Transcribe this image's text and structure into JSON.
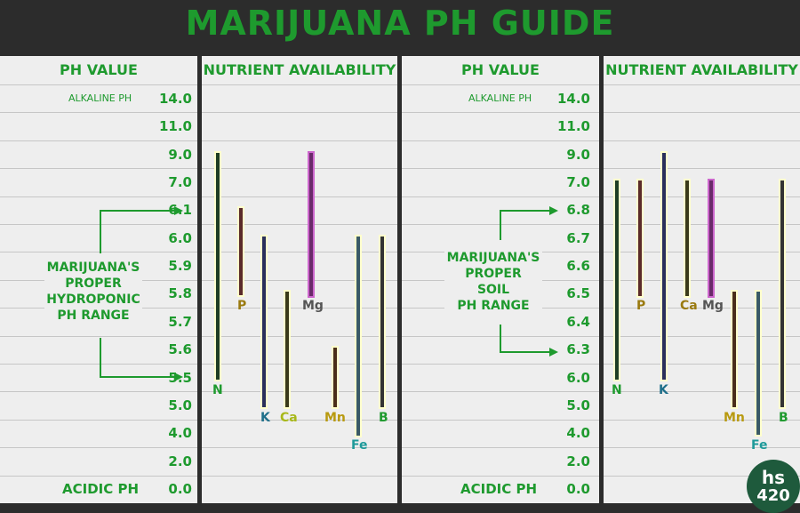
{
  "title": "MARIJUANA PH GUIDE",
  "colors": {
    "accent": "#1e9a2e",
    "background": "#2c2c2c",
    "panel": "#eeeeee",
    "logo": "#1e5a3c"
  },
  "left": {
    "ph_header": "PH VALUE",
    "nutrient_header": "NUTRIENT AVAILABILITY",
    "alkaline_label": "ALKALINE PH",
    "acidic_label": "ACIDIC PH",
    "ph_values": [
      "14.0",
      "11.0",
      "9.0",
      "7.0",
      "6.1",
      "6.0",
      "5.9",
      "5.8",
      "5.7",
      "5.6",
      "5.5",
      "5.0",
      "4.0",
      "2.0",
      "0.0"
    ],
    "range_label": [
      "MARIJUANA'S",
      "PROPER",
      "HYDROPONIC",
      "PH RANGE"
    ],
    "nutrients": [
      {
        "symbol": "N",
        "color": "#1e9a2e",
        "fill": "#1e3d24",
        "from": "5.5",
        "to": "9.0"
      },
      {
        "symbol": "P",
        "color": "#9a7a10",
        "fill": "#5a2a2a",
        "from": "5.8",
        "to": "6.1"
      },
      {
        "symbol": "K",
        "color": "#1f6f8a",
        "fill": "#2a2f5a",
        "from": "5.0",
        "to": "6.0"
      },
      {
        "symbol": "Ca",
        "color": "#a8b81a",
        "fill": "#3a3a1a",
        "from": "5.0",
        "to": "5.8"
      },
      {
        "symbol": "Mg",
        "color": "#555555",
        "fill": "#6a2a6a",
        "from": "5.8",
        "to": "9.0"
      },
      {
        "symbol": "Mn",
        "color": "#b89a10",
        "fill": "#4a2e1a",
        "from": "5.0",
        "to": "5.6"
      },
      {
        "symbol": "Fe",
        "color": "#1e9a9a",
        "fill": "#3a5a66",
        "from": "4.0",
        "to": "6.0"
      },
      {
        "symbol": "B",
        "color": "#1e9a2e",
        "fill": "#333333",
        "from": "5.0",
        "to": "6.0"
      }
    ]
  },
  "right": {
    "ph_header": "PH VALUE",
    "nutrient_header": "NUTRIENT AVAILABILITY",
    "alkaline_label": "ALKALINE PH",
    "acidic_label": "ACIDIC PH",
    "ph_values": [
      "14.0",
      "11.0",
      "9.0",
      "7.0",
      "6.8",
      "6.7",
      "6.6",
      "6.5",
      "6.4",
      "6.3",
      "6.0",
      "5.0",
      "4.0",
      "2.0",
      "0.0"
    ],
    "range_label": [
      "MARIJUANA'S",
      "PROPER",
      "SOIL",
      "PH RANGE"
    ],
    "nutrients": [
      {
        "symbol": "N",
        "color": "#1e9a2e",
        "fill": "#1e3d24",
        "from": "6.0",
        "to": "7.0"
      },
      {
        "symbol": "P",
        "color": "#9a7a10",
        "fill": "#5a2a2a",
        "from": "6.5",
        "to": "7.0"
      },
      {
        "symbol": "K",
        "color": "#1f6f8a",
        "fill": "#2a2f5a",
        "from": "6.0",
        "to": "9.0"
      },
      {
        "symbol": "Ca",
        "color": "#9a7a10",
        "fill": "#3a3a1a",
        "from": "6.5",
        "to": "7.0"
      },
      {
        "symbol": "Mg",
        "color": "#555555",
        "fill": "#6a2a6a",
        "from": "6.5",
        "to": "7.0"
      },
      {
        "symbol": "Mn",
        "color": "#b89a10",
        "fill": "#4a2e1a",
        "from": "5.0",
        "to": "6.5"
      },
      {
        "symbol": "Fe",
        "color": "#1e9a9a",
        "fill": "#3a5a66",
        "from": "4.0",
        "to": "6.5"
      },
      {
        "symbol": "B",
        "color": "#1e9a2e",
        "fill": "#333333",
        "from": "5.0",
        "to": "7.0"
      }
    ]
  },
  "logo": {
    "line1": "hs",
    "line2": "420"
  }
}
